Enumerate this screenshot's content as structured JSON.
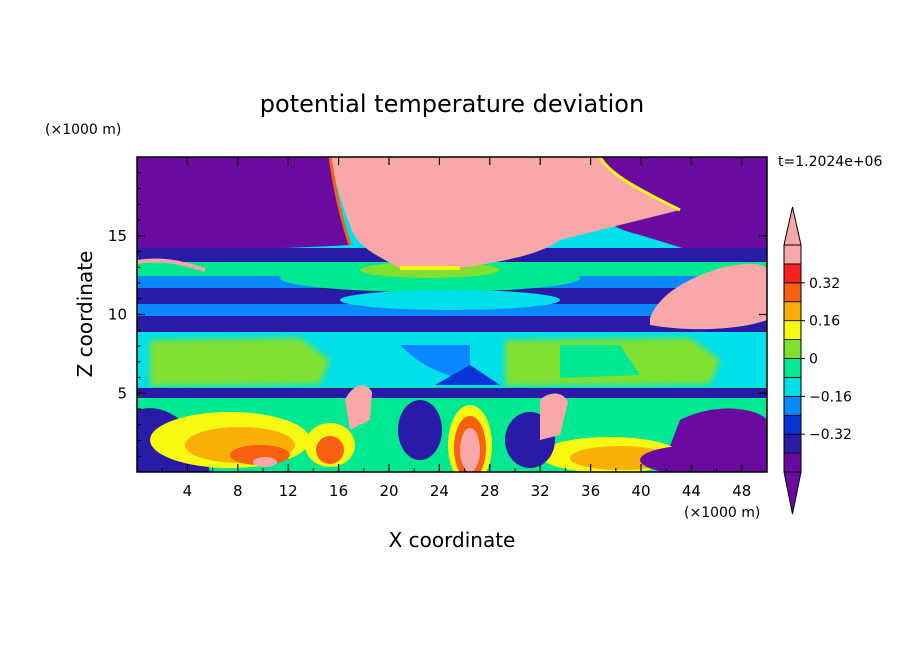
{
  "chart_data": {
    "type": "heatmap",
    "title": "potential temperature deviation",
    "time_label": "t=1.2024e+06",
    "xlabel": "X coordinate",
    "ylabel": "Z coordinate",
    "x_unit": "(×1000 m)",
    "y_unit": "(×1000 m)",
    "xlim": [
      0,
      50
    ],
    "ylim": [
      0,
      20
    ],
    "x_ticks": [
      4,
      8,
      12,
      16,
      20,
      24,
      28,
      32,
      36,
      40,
      44,
      48
    ],
    "y_ticks": [
      5,
      10,
      15
    ],
    "colorbar": {
      "levels": [
        -0.48,
        -0.4,
        -0.32,
        -0.24,
        -0.16,
        -0.08,
        0,
        0.08,
        0.16,
        0.24,
        0.32,
        0.4
      ],
      "labels": [
        "0.32",
        "0.16",
        "0",
        "−0.16",
        "−0.32"
      ],
      "label_values": [
        0.32,
        0.16,
        0,
        -0.16,
        -0.32
      ],
      "colors": [
        "#6a0aa0",
        "#2a1aa8",
        "#0a34d8",
        "#0a88ff",
        "#00e0e8",
        "#00e890",
        "#80e030",
        "#f8f810",
        "#f8b008",
        "#f86010",
        "#f82020",
        "#f8a8a8"
      ],
      "extend": "both"
    },
    "fields": {
      "background_level": 0.0,
      "rows": [
        {
          "z": [
            19.8,
            13.0
          ],
          "x": [
            0,
            12
          ],
          "value": -0.5
        },
        {
          "z": [
            19.8,
            13.2
          ],
          "x": [
            38,
            50
          ],
          "value": -0.5
        },
        {
          "z": [
            19.8,
            13.0
          ],
          "x": [
            12,
            38
          ],
          "value": 0.45
        }
      ]
    }
  }
}
